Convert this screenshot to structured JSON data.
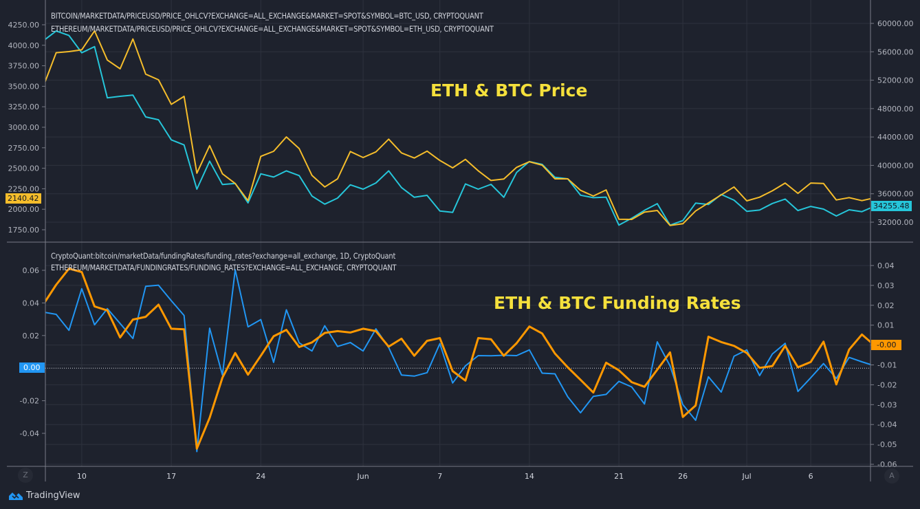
{
  "app": {
    "brand": "TradingView",
    "left_scale_button": "Z",
    "right_scale_button": "A"
  },
  "colors": {
    "background": "#1e222d",
    "grid": "#2e323e",
    "eth_price": "#f5bd2b",
    "btc_price": "#26c6da",
    "btc_funding": "#2196f3",
    "eth_funding": "#ff9800",
    "title": "#f5e03c"
  },
  "x_axis_ticks": [
    {
      "date": "May 10",
      "label": "10"
    },
    {
      "date": "May 17",
      "label": "17"
    },
    {
      "date": "May 24",
      "label": "24"
    },
    {
      "date": "Jun 1",
      "label": "Jun"
    },
    {
      "date": "Jun 7",
      "label": "7"
    },
    {
      "date": "Jun 14",
      "label": "14"
    },
    {
      "date": "Jun 21",
      "label": "21"
    },
    {
      "date": "Jun 26",
      "label": "26"
    },
    {
      "date": "Jul 1",
      "label": "Jul"
    },
    {
      "date": "Jul 6",
      "label": "6"
    }
  ],
  "chart_data": [
    {
      "type": "line",
      "title": "ETH & BTC Price",
      "legend": [
        "BITCOIN/MARKETDATA/PRICEUSD/PRICE_OHLCV?EXCHANGE=ALL_EXCHANGE&MARKET=SPOT&SYMBOL=BTC_USD, CRYPTOQUANT",
        "ETHEREUM/MARKETDATA/PRICEUSD/PRICE_OHLCV?EXCHANGE=ALL_EXCHANGE&MARKET=SPOT&SYMBOL=ETH_USD, CRYPTOQUANT"
      ],
      "left_axis": {
        "ticks": [
          "4250.00",
          "4000.00",
          "3750.00",
          "3500.00",
          "3250.00",
          "3000.00",
          "2750.00",
          "2500.00",
          "2250.00",
          "2000.00",
          "1750.00"
        ],
        "range": [
          1750,
          4250
        ]
      },
      "right_axis": {
        "ticks": [
          "60000.00",
          "56000.00",
          "52000.00",
          "48000.00",
          "44000.00",
          "40000.00",
          "36000.00",
          "32000.00"
        ],
        "range": [
          32000,
          60000
        ]
      },
      "x": [
        "May 7",
        "May 8",
        "May 9",
        "May 10",
        "May 11",
        "May 12",
        "May 13",
        "May 14",
        "May 15",
        "May 16",
        "May 17",
        "May 18",
        "May 19",
        "May 20",
        "May 21",
        "May 22",
        "May 23",
        "May 24",
        "May 25",
        "May 26",
        "May 27",
        "May 28",
        "May 29",
        "May 30",
        "May 31",
        "Jun 1",
        "Jun 2",
        "Jun 3",
        "Jun 4",
        "Jun 5",
        "Jun 6",
        "Jun 7",
        "Jun 8",
        "Jun 9",
        "Jun 10",
        "Jun 11",
        "Jun 12",
        "Jun 13",
        "Jun 14",
        "Jun 15",
        "Jun 16",
        "Jun 17",
        "Jun 18",
        "Jun 19",
        "Jun 20",
        "Jun 21",
        "Jun 22",
        "Jun 23",
        "Jun 24",
        "Jun 25",
        "Jun 26",
        "Jun 27",
        "Jun 28",
        "Jun 29",
        "Jun 30",
        "Jul 1",
        "Jul 2",
        "Jul 3",
        "Jul 4",
        "Jul 5",
        "Jul 6",
        "Jul 7",
        "Jul 8",
        "Jul 9",
        "Jul 10",
        "Jul 11"
      ],
      "series": [
        {
          "name": "ETHEREUM/MARKETDATA/PRICEUSD/PRICE_OHLCV?EXCHANGE=ALL_EXCHANGE&MARKET=SPOT&SYMBOL=ETH_USD, CRYPTOQUANT",
          "axis": "left",
          "color": "#f5bd2b",
          "last_label": "2140.42",
          "values": [
            3500,
            3909,
            3923,
            3945,
            4175,
            3820,
            3713,
            4076,
            3648,
            3579,
            3279,
            3377,
            2440,
            2776,
            2432,
            2314,
            2105,
            2645,
            2706,
            2882,
            2740,
            2413,
            2272,
            2371,
            2704,
            2631,
            2700,
            2855,
            2687,
            2625,
            2709,
            2595,
            2505,
            2608,
            2469,
            2351,
            2368,
            2511,
            2580,
            2538,
            2371,
            2371,
            2231,
            2161,
            2236,
            1878,
            1876,
            1965,
            1985,
            1803,
            1823,
            1979,
            2077,
            2175,
            2272,
            2102,
            2147,
            2225,
            2320,
            2194,
            2320,
            2314,
            2113,
            2142,
            2105,
            2140.42
          ]
        },
        {
          "name": "BITCOIN/MARKETDATA/PRICEUSD/PRICE_OHLCV?EXCHANGE=ALL_EXCHANGE&MARKET=SPOT&SYMBOL=BTC_USD, CRYPTOQUANT",
          "axis": "right",
          "color": "#26c6da",
          "last_label": "34255.48",
          "values": [
            57550,
            58930,
            58290,
            55860,
            56730,
            49510,
            49730,
            49890,
            46820,
            46430,
            43600,
            42880,
            36650,
            40590,
            37300,
            37450,
            34710,
            38810,
            38360,
            39230,
            38560,
            35680,
            34540,
            35390,
            37260,
            36650,
            37520,
            39230,
            36870,
            35510,
            35780,
            33580,
            33380,
            37390,
            36650,
            37330,
            35510,
            39000,
            40550,
            40140,
            38320,
            38100,
            35800,
            35450,
            35530,
            31580,
            32550,
            33670,
            34610,
            31580,
            32220,
            34680,
            34490,
            35900,
            35100,
            33520,
            33710,
            34640,
            35260,
            33640,
            34220,
            33840,
            32870,
            33740,
            33480,
            34255.48
          ]
        }
      ]
    },
    {
      "type": "line",
      "title": "ETH & BTC Funding Rates",
      "legend": [
        "CryptoQuant:bitcoin/marketData/fundingRates/funding_rates?exchange=all_exchange, 1D, CryptoQuant",
        "ETHEREUM/MARKETDATA/FUNDINGRATES/FUNDING_RATES?EXCHANGE=ALL_EXCHANGE, CRYPTOQUANT"
      ],
      "left_axis": {
        "ticks": [
          "0.06",
          "0.04",
          "0.02",
          "0.00",
          "-0.02",
          "-0.04"
        ],
        "range": [
          -0.04,
          0.06
        ]
      },
      "right_axis": {
        "ticks": [
          "0.04",
          "0.03",
          "0.02",
          "0.01",
          "0.00",
          "-0.01",
          "-0.02",
          "-0.03",
          "-0.04",
          "-0.05",
          "-0.06"
        ],
        "range": [
          -0.06,
          0.04
        ]
      },
      "series": [
        {
          "name": "CryptoQuant:bitcoin/marketData/fundingRates/funding_rates?exchange=all_exchange, 1D, CryptoQuant",
          "axis": "left",
          "color": "#2196f3",
          "last_label": "0.00",
          "values": [
            0.0344,
            0.033,
            0.0232,
            0.0487,
            0.0266,
            0.0365,
            0.0274,
            0.0182,
            0.0502,
            0.0509,
            0.0414,
            0.0323,
            -0.0512,
            0.0245,
            -0.0042,
            0.0603,
            0.0253,
            0.0298,
            0.0035,
            0.0358,
            0.0155,
            0.0105,
            0.026,
            0.0133,
            0.0157,
            0.0105,
            0.0241,
            0.0126,
            -0.0042,
            -0.0049,
            -0.0028,
            0.015,
            -0.0091,
            0.0014,
            0.0077,
            0.0076,
            0.0079,
            0.0077,
            0.0112,
            -0.0031,
            -0.0035,
            -0.0176,
            -0.0274,
            -0.0173,
            -0.0161,
            -0.0081,
            -0.0115,
            -0.022,
            0.0161,
            0.0014,
            -0.0224,
            -0.032,
            -0.0053,
            -0.0147,
            0.0073,
            0.0112,
            -0.0046,
            0.0087,
            0.0152,
            -0.0143,
            -0.0059,
            0.0028,
            -0.0063,
            0.0066,
            0.0039,
            0.0014
          ]
        },
        {
          "name": "ETHEREUM/MARKETDATA/FUNDINGRATES/FUNDING_RATES?EXCHANGE=ALL_EXCHANGE, CRYPTOQUANT",
          "axis": "right",
          "color": "#ff9800",
          "last_label": "-0.00",
          "values": [
            0.0205,
            0.0303,
            0.0384,
            0.0367,
            0.0194,
            0.0174,
            0.0038,
            0.0128,
            0.0142,
            0.0203,
            0.0082,
            0.0079,
            -0.0521,
            -0.0366,
            -0.0164,
            -0.004,
            -0.0149,
            -0.0054,
            0.0044,
            0.0076,
            -0.001,
            0.0013,
            0.0061,
            0.007,
            0.0063,
            0.0082,
            0.007,
            -0.0008,
            0.0032,
            -0.0054,
            0.0021,
            0.0035,
            -0.0131,
            -0.0179,
            0.0035,
            0.0029,
            -0.0054,
            0.0009,
            0.0093,
            0.0058,
            -0.0043,
            -0.0112,
            -0.0175,
            -0.0239,
            -0.0089,
            -0.0127,
            -0.0187,
            -0.021,
            -0.0124,
            -0.0037,
            -0.0362,
            -0.0304,
            0.0042,
            0.0015,
            -0.0004,
            -0.004,
            -0.0115,
            -0.0106,
            -0.0004,
            -0.0112,
            -0.0085,
            0.0017,
            -0.0198,
            -0.0023,
            0.0053,
            -0.0003
          ]
        }
      ]
    }
  ]
}
